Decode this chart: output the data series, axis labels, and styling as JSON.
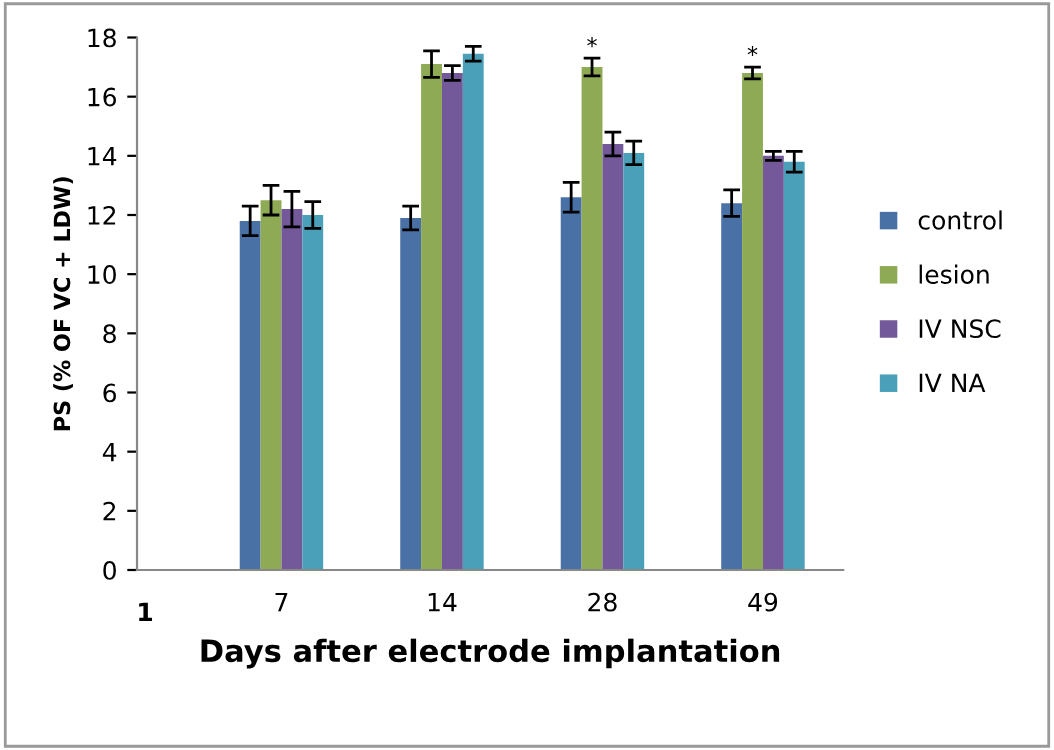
{
  "chart_data": {
    "type": "bar",
    "xlabel": "Days after electrode implantation",
    "ylabel": "PS (% OF VC + LDW)",
    "categories": [
      "7",
      "14",
      "28",
      "49"
    ],
    "series": [
      {
        "name": "control",
        "color": "#4a71a6",
        "values": [
          11.8,
          11.9,
          12.6,
          12.4
        ],
        "errors": [
          0.5,
          0.4,
          0.5,
          0.45
        ]
      },
      {
        "name": "lesion",
        "color": "#8faa55",
        "values": [
          12.5,
          17.1,
          17.0,
          16.8
        ],
        "errors": [
          0.5,
          0.45,
          0.3,
          0.2
        ]
      },
      {
        "name": "IV NSC",
        "color": "#73589a",
        "values": [
          12.2,
          16.8,
          14.4,
          14.0
        ],
        "errors": [
          0.6,
          0.25,
          0.4,
          0.15
        ]
      },
      {
        "name": "IV NA",
        "color": "#4aa0b8",
        "values": [
          12.0,
          17.45,
          14.1,
          13.8
        ],
        "errors": [
          0.45,
          0.25,
          0.4,
          0.35
        ]
      }
    ],
    "annotations": [
      {
        "text": "*",
        "x": "28",
        "y": 17.3
      },
      {
        "text": "*",
        "x": "49",
        "y": 17.0
      },
      "1"
    ],
    "ylim": [
      0,
      18
    ],
    "yticks": [
      0,
      2,
      4,
      6,
      8,
      10,
      12,
      14,
      16,
      18
    ],
    "grid": false,
    "legend": "right"
  }
}
